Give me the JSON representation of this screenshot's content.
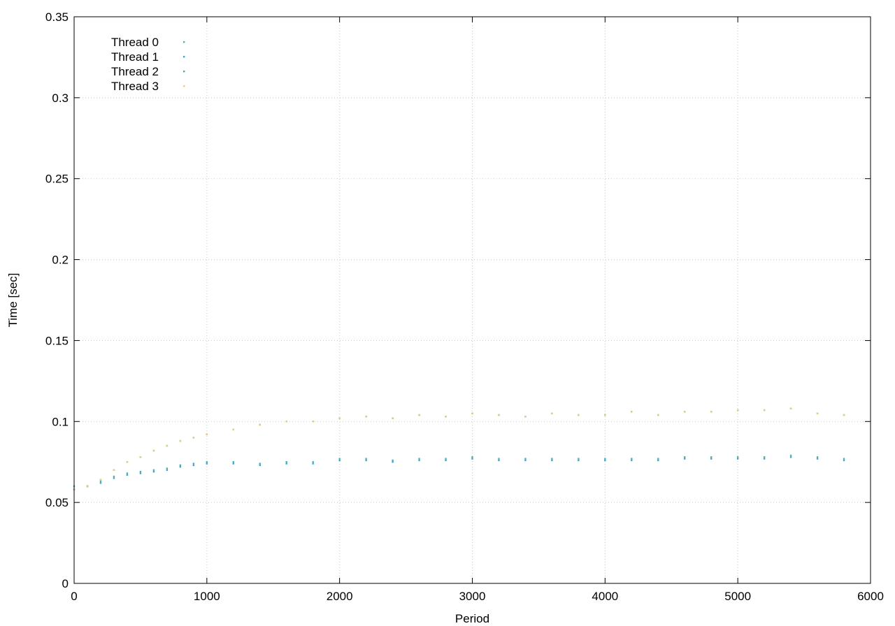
{
  "chart_data": {
    "type": "scatter",
    "title": "",
    "xlabel": "Period",
    "ylabel": "Time [sec]",
    "xlim": [
      0,
      6000
    ],
    "ylim": [
      0,
      0.35
    ],
    "x_ticks": [
      0,
      1000,
      2000,
      3000,
      4000,
      5000,
      6000
    ],
    "y_ticks": [
      0,
      0.05,
      0.1,
      0.15,
      0.2,
      0.25,
      0.3,
      0.35
    ],
    "x_tick_labels": [
      "0",
      "1000",
      "2000",
      "3000",
      "4000",
      "5000",
      "6000"
    ],
    "y_tick_labels": [
      "0",
      "0.05",
      "0.1",
      "0.15",
      "0.2",
      "0.25",
      "0.3",
      "0.35"
    ],
    "grid": true,
    "legend_position": "top-left",
    "series": [
      {
        "name": "Thread 0",
        "color": "#4fb3b3",
        "x": [
          0,
          100,
          200,
          300,
          400,
          500,
          600,
          700,
          800,
          900,
          1000,
          1200,
          1400,
          1600,
          1800,
          2000,
          2200,
          2400,
          2600,
          2800,
          3000,
          3200,
          3400,
          3600,
          3800,
          4000,
          4200,
          4400,
          4600,
          4800,
          5000,
          5200,
          5400,
          5600,
          5800
        ],
        "y": [
          0.06,
          0.06,
          0.063,
          0.066,
          0.068,
          0.069,
          0.07,
          0.071,
          0.073,
          0.074,
          0.075,
          0.075,
          0.074,
          0.075,
          0.075,
          0.077,
          0.077,
          0.076,
          0.077,
          0.077,
          0.078,
          0.077,
          0.077,
          0.077,
          0.077,
          0.077,
          0.077,
          0.077,
          0.078,
          0.078,
          0.078,
          0.078,
          0.079,
          0.078,
          0.077
        ]
      },
      {
        "name": "Thread 1",
        "color": "#4a9fd0",
        "x": [
          0,
          100,
          200,
          300,
          400,
          500,
          600,
          700,
          800,
          900,
          1000,
          1200,
          1400,
          1600,
          1800,
          2000,
          2200,
          2400,
          2600,
          2800,
          3000,
          3200,
          3400,
          3600,
          3800,
          4000,
          4200,
          4400,
          4600,
          4800,
          5000,
          5200,
          5400,
          5600,
          5800
        ],
        "y": [
          0.058,
          0.06,
          0.062,
          0.065,
          0.067,
          0.068,
          0.069,
          0.07,
          0.072,
          0.073,
          0.074,
          0.074,
          0.073,
          0.074,
          0.074,
          0.076,
          0.076,
          0.075,
          0.076,
          0.076,
          0.077,
          0.076,
          0.076,
          0.076,
          0.076,
          0.076,
          0.076,
          0.076,
          0.077,
          0.077,
          0.077,
          0.077,
          0.078,
          0.077,
          0.076
        ]
      },
      {
        "name": "Thread 2",
        "color": "#5aa882",
        "x": [
          0,
          100,
          200,
          300,
          400,
          500,
          600,
          700,
          800,
          900,
          1000,
          1200,
          1400,
          1600,
          1800,
          2000,
          2200,
          2400,
          2600,
          2800,
          3000,
          3200,
          3400,
          3600,
          3800,
          4000,
          4200,
          4400,
          4600,
          4800,
          5000,
          5200,
          5400,
          5600,
          5800
        ],
        "y": [
          0.058,
          0.06,
          0.064,
          0.07,
          0.075,
          0.078,
          0.082,
          0.085,
          0.088,
          0.09,
          0.092,
          0.095,
          0.098,
          0.1,
          0.1,
          0.102,
          0.103,
          0.102,
          0.104,
          0.103,
          0.105,
          0.104,
          0.103,
          0.105,
          0.104,
          0.104,
          0.106,
          0.104,
          0.106,
          0.106,
          0.107,
          0.107,
          0.108,
          0.105,
          0.104
        ]
      },
      {
        "name": "Thread 3",
        "color": "#e8c98a",
        "x": [
          0,
          100,
          200,
          300,
          400,
          500,
          600,
          700,
          800,
          900,
          1000,
          1200,
          1400,
          1600,
          1800,
          2000,
          2200,
          2400,
          2600,
          2800,
          3000,
          3200,
          3400,
          3600,
          3800,
          4000,
          4200,
          4400,
          4600,
          4800,
          5000,
          5200,
          5400,
          5600,
          5800
        ],
        "y": [
          0.058,
          0.06,
          0.064,
          0.07,
          0.075,
          0.078,
          0.082,
          0.085,
          0.088,
          0.09,
          0.092,
          0.095,
          0.098,
          0.1,
          0.1,
          0.102,
          0.103,
          0.102,
          0.104,
          0.103,
          0.105,
          0.104,
          0.103,
          0.105,
          0.104,
          0.104,
          0.106,
          0.104,
          0.106,
          0.106,
          0.107,
          0.107,
          0.108,
          0.105,
          0.104
        ]
      }
    ]
  }
}
